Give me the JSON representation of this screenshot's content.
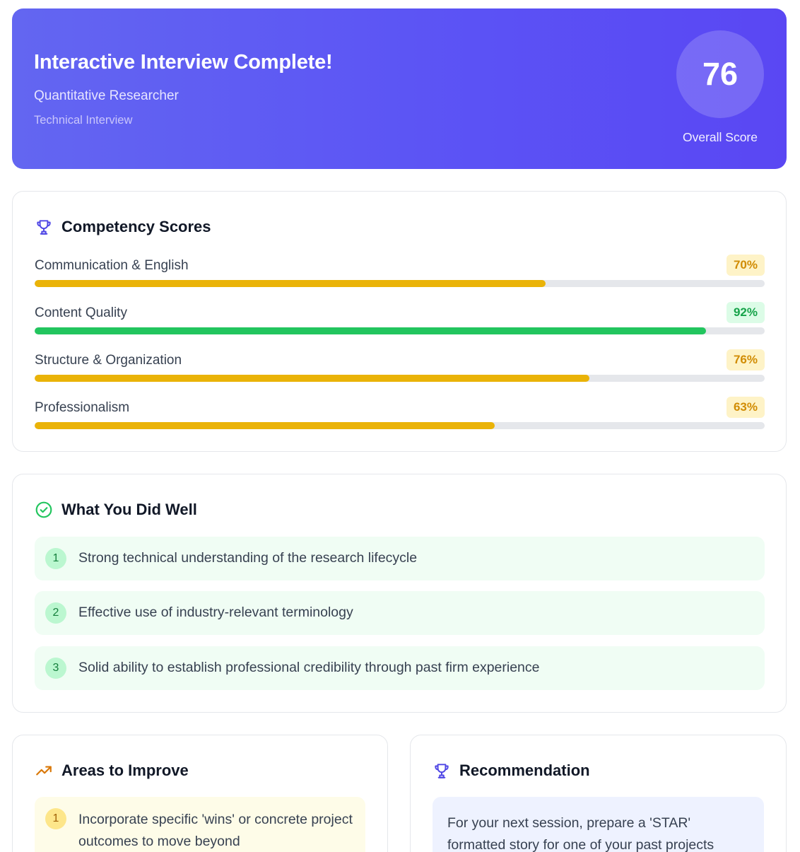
{
  "header": {
    "title": "Interactive Interview Complete!",
    "role": "Quantitative Researcher",
    "interview_type": "Technical Interview",
    "overall_score": "76",
    "overall_score_label": "Overall Score"
  },
  "competency": {
    "title": "Competency Scores",
    "items": [
      {
        "name": "Communication & English",
        "score_label": "70%",
        "score": 70,
        "status": "warning"
      },
      {
        "name": "Content Quality",
        "score_label": "92%",
        "score": 92,
        "status": "good"
      },
      {
        "name": "Structure & Organization",
        "score_label": "76%",
        "score": 76,
        "status": "warning"
      },
      {
        "name": "Professionalism",
        "score_label": "63%",
        "score": 63,
        "status": "warning"
      }
    ]
  },
  "did_well": {
    "title": "What You Did Well",
    "items": [
      {
        "number": "1",
        "text": "Strong technical understanding of the research lifecycle"
      },
      {
        "number": "2",
        "text": "Effective use of industry-relevant terminology"
      },
      {
        "number": "3",
        "text": "Solid ability to establish professional credibility through past firm experience"
      }
    ]
  },
  "improve": {
    "title": "Areas to Improve",
    "items": [
      {
        "number": "1",
        "text": "Incorporate specific 'wins' or concrete project outcomes to move beyond"
      }
    ]
  },
  "recommendation": {
    "title": "Recommendation",
    "text": "For your next session, prepare a 'STAR' formatted story for one of your past projects"
  },
  "colors": {
    "accent": "#5b52f5",
    "warning": "#eab308",
    "good": "#22c55e",
    "improve_icon": "#d97706"
  },
  "icons": {
    "competency": "trophy-icon",
    "did_well": "check-circle-icon",
    "improve": "trending-up-icon",
    "recommendation": "trophy-icon"
  }
}
